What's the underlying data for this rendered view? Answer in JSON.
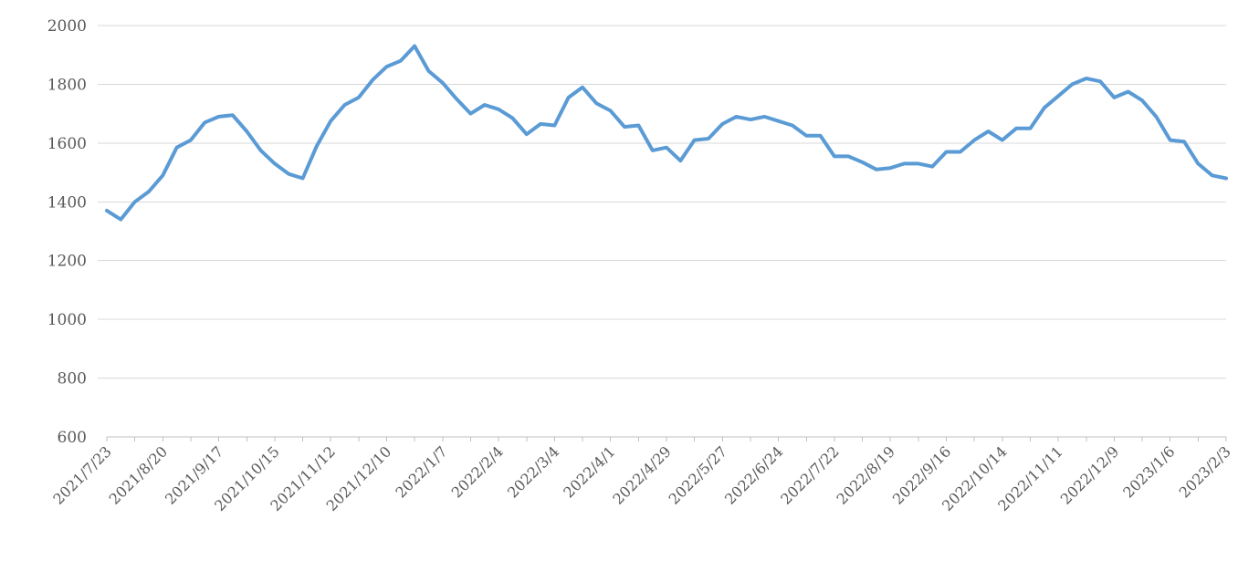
{
  "chart_data": {
    "type": "line",
    "title": "",
    "xlabel": "",
    "ylabel": "",
    "grid": true,
    "legend": "none",
    "ylim": [
      600,
      2000
    ],
    "ytick_step": 200,
    "ytick_labels": [
      "600",
      "800",
      "1000",
      "1200",
      "1400",
      "1600",
      "1800",
      "2000"
    ],
    "xtick_label_every": 4,
    "minor_tick_every": 2,
    "xtick_labels": [
      "2021/7/23",
      "2021/8/20",
      "2021/9/17",
      "2021/10/15",
      "2021/11/12",
      "2021/12/10",
      "2022/1/7",
      "2022/2/4",
      "2022/3/4",
      "2022/4/1",
      "2022/4/29",
      "2022/5/27",
      "2022/6/24",
      "2022/7/22",
      "2022/8/19",
      "2022/9/16",
      "2022/10/14",
      "2022/11/11",
      "2022/12/9",
      "2023/1/6",
      "2023/2/3"
    ],
    "x": [
      "2021/7/23",
      "2021/7/30",
      "2021/8/6",
      "2021/8/13",
      "2021/8/20",
      "2021/8/27",
      "2021/9/3",
      "2021/9/10",
      "2021/9/17",
      "2021/9/24",
      "2021/10/1",
      "2021/10/8",
      "2021/10/15",
      "2021/10/22",
      "2021/10/29",
      "2021/11/5",
      "2021/11/12",
      "2021/11/19",
      "2021/11/26",
      "2021/12/3",
      "2021/12/10",
      "2021/12/17",
      "2021/12/24",
      "2021/12/31",
      "2022/1/7",
      "2022/1/14",
      "2022/1/21",
      "2022/1/28",
      "2022/2/4",
      "2022/2/11",
      "2022/2/18",
      "2022/2/25",
      "2022/3/4",
      "2022/3/11",
      "2022/3/18",
      "2022/3/25",
      "2022/4/1",
      "2022/4/8",
      "2022/4/15",
      "2022/4/22",
      "2022/4/29",
      "2022/5/6",
      "2022/5/13",
      "2022/5/20",
      "2022/5/27",
      "2022/6/3",
      "2022/6/10",
      "2022/6/17",
      "2022/6/24",
      "2022/7/1",
      "2022/7/8",
      "2022/7/15",
      "2022/7/22",
      "2022/7/29",
      "2022/8/5",
      "2022/8/12",
      "2022/8/19",
      "2022/8/26",
      "2022/9/2",
      "2022/9/9",
      "2022/9/16",
      "2022/9/23",
      "2022/9/30",
      "2022/10/7",
      "2022/10/14",
      "2022/10/21",
      "2022/10/28",
      "2022/11/4",
      "2022/11/11",
      "2022/11/18",
      "2022/11/25",
      "2022/12/2",
      "2022/12/9",
      "2022/12/16",
      "2022/12/23",
      "2022/12/30",
      "2023/1/6",
      "2023/1/13",
      "2023/1/20",
      "2023/1/27",
      "2023/2/3"
    ],
    "values": [
      1370,
      1340,
      1400,
      1435,
      1490,
      1585,
      1610,
      1670,
      1690,
      1695,
      1640,
      1575,
      1530,
      1495,
      1480,
      1590,
      1675,
      1730,
      1755,
      1815,
      1860,
      1880,
      1930,
      1845,
      1805,
      1750,
      1700,
      1730,
      1715,
      1685,
      1630,
      1665,
      1660,
      1755,
      1790,
      1735,
      1710,
      1655,
      1660,
      1575,
      1585,
      1540,
      1610,
      1615,
      1665,
      1690,
      1680,
      1690,
      1675,
      1660,
      1625,
      1625,
      1555,
      1555,
      1535,
      1510,
      1515,
      1530,
      1530,
      1520,
      1570,
      1570,
      1610,
      1640,
      1610,
      1650,
      1650,
      1720,
      1760,
      1800,
      1820,
      1810,
      1755,
      1775,
      1745,
      1690,
      1610,
      1605,
      1530,
      1490,
      1480
    ]
  },
  "colors": {
    "line": "#5B9BD5",
    "gridline": "#D9D9D9",
    "axis": "#BFBFBF",
    "tick": "#BFBFBF",
    "label_text": "#595959",
    "background": "#FFFFFF"
  }
}
